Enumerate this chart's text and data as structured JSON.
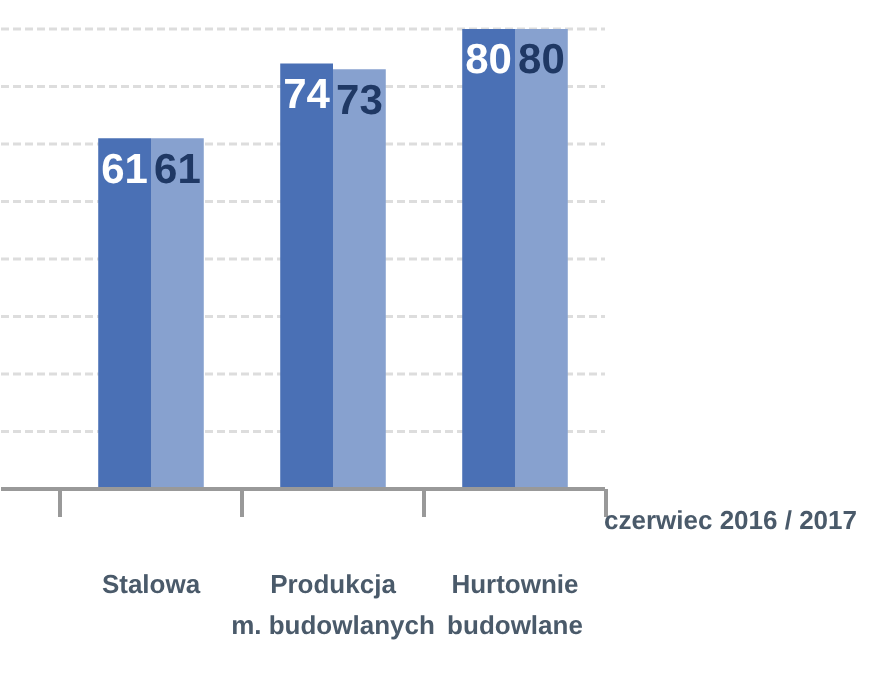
{
  "chart_data": {
    "type": "bar",
    "categories": [
      "Stalowa",
      "Produkcja\nm. budowlanych",
      "Hurtownie\nbudowlane"
    ],
    "series": [
      {
        "color": "#4a70b5",
        "values": [
          61,
          74,
          80
        ]
      },
      {
        "color": "#87a1cf",
        "values": [
          61,
          73,
          80
        ]
      }
    ],
    "legend_title": "czerwiec 2016 / 2017",
    "data_labels": true,
    "ylim": [
      0,
      80
    ],
    "yticks": [
      {
        "value": 10,
        "label": null
      },
      {
        "value": 20,
        "label": null
      },
      {
        "value": 30,
        "label": null
      },
      {
        "value": 40,
        "label": null
      },
      {
        "value": 50,
        "label": null
      },
      {
        "value": 60,
        "label": null
      },
      {
        "value": 70,
        "label": null
      },
      {
        "value": 80,
        "label": null
      }
    ],
    "grid": "y",
    "tick_labels": "x"
  }
}
